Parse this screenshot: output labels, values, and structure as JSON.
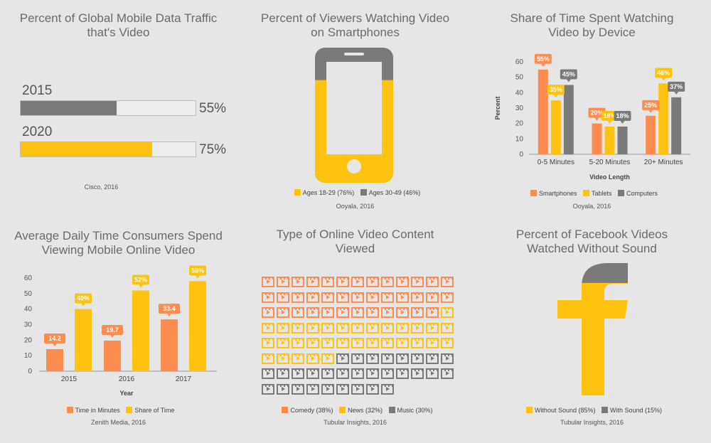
{
  "colors": {
    "orange": "#ff8c4f",
    "yellow": "#ffc20e",
    "gray": "#7a7a7a",
    "light": "#ececec"
  },
  "chart_data": [
    {
      "type": "bar",
      "title": "Percent of Global Mobile Data Traffic that's Video",
      "categories": [
        "2015",
        "2020"
      ],
      "values": [
        55,
        75
      ],
      "value_labels": [
        "55%",
        "75%"
      ],
      "colors": [
        "#7a7a7a",
        "#ffc20e"
      ],
      "xlim": [
        0,
        100
      ],
      "source": "Cisco, 2016"
    },
    {
      "type": "bar",
      "title": "Percent of Viewers Watching Video on Smartphones",
      "series": [
        {
          "name": "Ages 18-29",
          "value": 76,
          "label": "Ages 18-29 (76%)",
          "color": "#ffc20e"
        },
        {
          "name": "Ages 30-49",
          "value": 46,
          "label": "Ages 30-49 (46%)",
          "color": "#7a7a7a"
        }
      ],
      "source": "Ooyala, 2016"
    },
    {
      "type": "bar",
      "title": "Share of Time Spent Watching Video by Device",
      "categories": [
        "0-5 Minutes",
        "5-20 Minutes",
        "20+ Minutes"
      ],
      "series": [
        {
          "name": "Smartphones",
          "values": [
            55,
            20,
            25
          ],
          "color": "#ff8c4f"
        },
        {
          "name": "Tablets",
          "values": [
            35,
            18,
            46
          ],
          "color": "#ffc20e"
        },
        {
          "name": "Computers",
          "values": [
            45,
            18,
            37
          ],
          "color": "#7a7a7a"
        }
      ],
      "value_labels": [
        [
          "55%",
          "20%",
          "25%"
        ],
        [
          "35%",
          "18%",
          "46%"
        ],
        [
          "45%",
          "18%",
          "37%"
        ]
      ],
      "ylim": [
        0,
        60
      ],
      "yticks": [
        0,
        10,
        20,
        30,
        40,
        50,
        60
      ],
      "xlabel": "Video Length",
      "ylabel": "Percent",
      "source": "Ooyala, 2016"
    },
    {
      "type": "bar",
      "title": "Average Daily Time Consumers Spend Viewing Mobile Online Video",
      "categories": [
        "2015",
        "2016",
        "2017"
      ],
      "series": [
        {
          "name": "Time in Minutes",
          "values": [
            14.2,
            19.7,
            33.4
          ],
          "color": "#ff8c4f"
        },
        {
          "name": "Share of Time",
          "values": [
            40,
            52,
            58
          ],
          "color": "#ffc20e"
        }
      ],
      "value_labels": [
        [
          "14.2",
          "19.7",
          "33.4"
        ],
        [
          "40%",
          "52%",
          "58%"
        ]
      ],
      "ylim": [
        0,
        60
      ],
      "yticks": [
        0,
        10,
        20,
        30,
        40,
        50,
        60
      ],
      "xlabel": "Year",
      "source": "Zenith Media, 2016"
    },
    {
      "type": "bar",
      "title": "Type of Online Video Content Viewed",
      "series": [
        {
          "name": "Comedy",
          "value": 38,
          "label": "Comedy (38%)",
          "color": "#ff8c4f"
        },
        {
          "name": "News",
          "value": 32,
          "label": "News (32%)",
          "color": "#ffc20e"
        },
        {
          "name": "Music",
          "value": 30,
          "label": "Music (30%)",
          "color": "#7a7a7a"
        }
      ],
      "source": "Tubular Insights, 2016"
    },
    {
      "type": "pie",
      "title": "Percent of Facebook Videos Watched Without Sound",
      "series": [
        {
          "name": "Without Sound",
          "value": 85,
          "label": "Without Sound (85%)",
          "color": "#ffc20e"
        },
        {
          "name": "With Sound",
          "value": 15,
          "label": "With Sound (15%)",
          "color": "#7a7a7a"
        }
      ],
      "source": "Tubular Insights, 2016"
    }
  ]
}
